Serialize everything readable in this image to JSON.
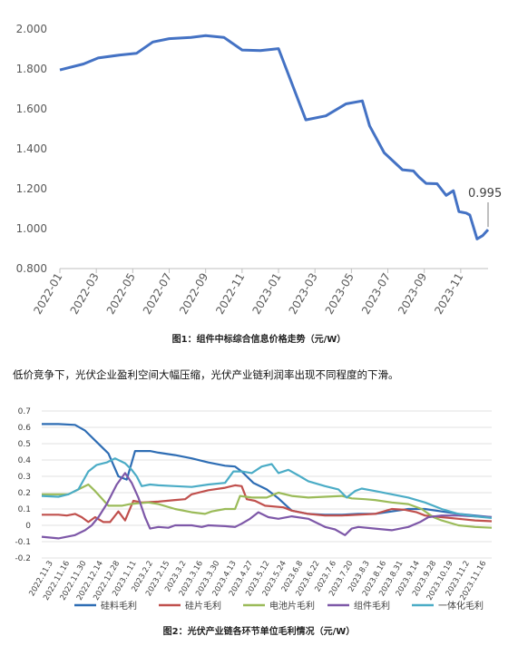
{
  "figure1": {
    "caption": "图1：组件中标综合信息价格走势（元/W）",
    "chart_data": {
      "type": "line",
      "ylim": [
        0.8,
        2.0
      ],
      "yticks": [
        "0.800",
        "1.000",
        "1.200",
        "1.400",
        "1.600",
        "1.800",
        "2.000"
      ],
      "xticks": [
        "2022-01",
        "2022-03",
        "2022-05",
        "2022-07",
        "2022-09",
        "2022-11",
        "2023-01",
        "2023-03",
        "2023-05",
        "2023-07",
        "2023-09",
        "2023-11"
      ],
      "annotation": "0.995",
      "series": [
        {
          "color": "#4472C4",
          "points": [
            [
              0,
              1.795
            ],
            [
              1.3,
              1.825
            ],
            [
              2.1,
              1.855
            ],
            [
              3.3,
              1.87
            ],
            [
              4.2,
              1.878
            ],
            [
              5.1,
              1.935
            ],
            [
              6.0,
              1.952
            ],
            [
              7.2,
              1.958
            ],
            [
              8.0,
              1.967
            ],
            [
              9.0,
              1.958
            ],
            [
              10.0,
              1.895
            ],
            [
              11.0,
              1.892
            ],
            [
              12.0,
              1.902
            ],
            [
              13.5,
              1.545
            ],
            [
              14.6,
              1.565
            ],
            [
              15.7,
              1.625
            ],
            [
              16.6,
              1.64
            ],
            [
              17.0,
              1.515
            ],
            [
              17.8,
              1.38
            ],
            [
              18.8,
              1.295
            ],
            [
              19.4,
              1.289
            ],
            [
              19.7,
              1.259
            ],
            [
              20.1,
              1.227
            ],
            [
              20.7,
              1.225
            ],
            [
              21.2,
              1.167
            ],
            [
              21.6,
              1.19
            ],
            [
              21.9,
              1.085
            ],
            [
              22.3,
              1.078
            ],
            [
              22.5,
              1.068
            ],
            [
              22.9,
              0.948
            ],
            [
              23.2,
              0.965
            ],
            [
              23.5,
              0.995
            ]
          ]
        }
      ]
    }
  },
  "paragraph": "低价竞争下，光伏企业盈利空间大幅压缩，光伏产业链利润率出现不同程度的下滑。",
  "figure2": {
    "caption": "图2：光伏产业链各环节单位毛利情况（元/W）",
    "chart_data": {
      "type": "line",
      "ylim": [
        -0.2,
        0.7
      ],
      "yticks": [
        "-0.2",
        "-0.1",
        "0",
        "0.1",
        "0.2",
        "0.3",
        "0.4",
        "0.5",
        "0.6",
        "0.7"
      ],
      "xticks": [
        "2022.11.3",
        "2022.11.16",
        "2022.11.30",
        "2022.12.14",
        "2022.12.28",
        "2023.1.11",
        "2023.2.2",
        "2023.2.15",
        "2023.3.2",
        "2023.3.16",
        "2023.3.30",
        "2023.4.13",
        "2023.4.27",
        "2023.5.12",
        "2023.5.24",
        "2023.6.8",
        "2023.6.22",
        "2023.7.6",
        "2023.7.20",
        "2023.8.3",
        "2023.8.16",
        "2023.8.31",
        "2023.9.14",
        "2023.9.28",
        "2023.10.19",
        "2023.11.2",
        "2023.11.16"
      ],
      "series": [
        {
          "name": "硅料毛利",
          "color": "#2E6DB4",
          "points": [
            [
              0,
              0.62
            ],
            [
              1,
              0.62
            ],
            [
              2,
              0.615
            ],
            [
              2.6,
              0.58
            ],
            [
              3.5,
              0.49
            ],
            [
              4.0,
              0.44
            ],
            [
              4.3,
              0.37
            ],
            [
              4.6,
              0.3
            ],
            [
              5.1,
              0.28
            ],
            [
              5.3,
              0.35
            ],
            [
              5.6,
              0.455
            ],
            [
              6.5,
              0.455
            ],
            [
              7,
              0.445
            ],
            [
              8,
              0.43
            ],
            [
              9,
              0.41
            ],
            [
              10,
              0.385
            ],
            [
              11,
              0.365
            ],
            [
              11.6,
              0.36
            ],
            [
              12,
              0.33
            ],
            [
              12.7,
              0.26
            ],
            [
              13.5,
              0.22
            ],
            [
              14.2,
              0.165
            ],
            [
              15,
              0.09
            ],
            [
              16,
              0.07
            ],
            [
              17,
              0.065
            ],
            [
              18,
              0.065
            ],
            [
              19,
              0.07
            ],
            [
              20,
              0.07
            ],
            [
              21,
              0.085
            ],
            [
              22,
              0.1
            ],
            [
              23,
              0.1
            ],
            [
              24,
              0.085
            ],
            [
              25,
              0.07
            ],
            [
              26,
              0.06
            ],
            [
              27,
              0.05
            ]
          ]
        },
        {
          "name": "硅片毛利",
          "color": "#C0504D",
          "points": [
            [
              0,
              0.065
            ],
            [
              1,
              0.065
            ],
            [
              1.5,
              0.06
            ],
            [
              2,
              0.07
            ],
            [
              2.4,
              0.05
            ],
            [
              2.8,
              0.02
            ],
            [
              3.2,
              0.05
            ],
            [
              3.7,
              0.02
            ],
            [
              4.1,
              0.02
            ],
            [
              4.6,
              0.085
            ],
            [
              5.0,
              0.03
            ],
            [
              5.5,
              0.15
            ],
            [
              6,
              0.14
            ],
            [
              7,
              0.145
            ],
            [
              8,
              0.155
            ],
            [
              8.6,
              0.16
            ],
            [
              9,
              0.19
            ],
            [
              10,
              0.215
            ],
            [
              11,
              0.23
            ],
            [
              11.6,
              0.245
            ],
            [
              12.0,
              0.24
            ],
            [
              12.3,
              0.16
            ],
            [
              12.8,
              0.15
            ],
            [
              13.4,
              0.12
            ],
            [
              14.5,
              0.11
            ],
            [
              15,
              0.09
            ],
            [
              16,
              0.07
            ],
            [
              17,
              0.06
            ],
            [
              18,
              0.06
            ],
            [
              19,
              0.065
            ],
            [
              20,
              0.07
            ],
            [
              21,
              0.1
            ],
            [
              21.8,
              0.095
            ],
            [
              22.5,
              0.08
            ],
            [
              23,
              0.06
            ],
            [
              24,
              0.05
            ],
            [
              25,
              0.04
            ],
            [
              26,
              0.03
            ],
            [
              27,
              0.025
            ]
          ]
        },
        {
          "name": "电池片毛利",
          "color": "#9BBB59",
          "points": [
            [
              0,
              0.19
            ],
            [
              1,
              0.19
            ],
            [
              1.6,
              0.19
            ],
            [
              2.2,
              0.22
            ],
            [
              2.8,
              0.25
            ],
            [
              3.2,
              0.21
            ],
            [
              4.0,
              0.12
            ],
            [
              4.8,
              0.12
            ],
            [
              5.3,
              0.13
            ],
            [
              5.8,
              0.135
            ],
            [
              6.4,
              0.14
            ],
            [
              7,
              0.13
            ],
            [
              8,
              0.1
            ],
            [
              9,
              0.08
            ],
            [
              9.8,
              0.07
            ],
            [
              10.2,
              0.085
            ],
            [
              11,
              0.1
            ],
            [
              11.6,
              0.1
            ],
            [
              11.9,
              0.18
            ],
            [
              12.6,
              0.17
            ],
            [
              13.5,
              0.17
            ],
            [
              14.2,
              0.2
            ],
            [
              15,
              0.18
            ],
            [
              16,
              0.17
            ],
            [
              17,
              0.175
            ],
            [
              18,
              0.18
            ],
            [
              18.6,
              0.165
            ],
            [
              19.4,
              0.16
            ],
            [
              20,
              0.155
            ],
            [
              21,
              0.14
            ],
            [
              22,
              0.13
            ],
            [
              22.8,
              0.1
            ],
            [
              23.5,
              0.05
            ],
            [
              24,
              0.03
            ],
            [
              25,
              0.0
            ],
            [
              26,
              -0.01
            ],
            [
              27,
              -0.015
            ]
          ]
        },
        {
          "name": "组件毛利",
          "color": "#7E58A8",
          "points": [
            [
              0,
              -0.07
            ],
            [
              1,
              -0.08
            ],
            [
              2,
              -0.06
            ],
            [
              2.6,
              -0.03
            ],
            [
              3.0,
              0.0
            ],
            [
              3.4,
              0.05
            ],
            [
              3.9,
              0.13
            ],
            [
              4.5,
              0.25
            ],
            [
              5.0,
              0.32
            ],
            [
              5.4,
              0.26
            ],
            [
              5.8,
              0.17
            ],
            [
              6.2,
              0.05
            ],
            [
              6.5,
              -0.02
            ],
            [
              7,
              -0.01
            ],
            [
              7.6,
              -0.015
            ],
            [
              8,
              0.0
            ],
            [
              9,
              0.0
            ],
            [
              9.6,
              -0.01
            ],
            [
              10,
              0.0
            ],
            [
              11,
              -0.005
            ],
            [
              11.6,
              -0.01
            ],
            [
              12,
              0.01
            ],
            [
              12.5,
              0.04
            ],
            [
              13.0,
              0.08
            ],
            [
              13.6,
              0.05
            ],
            [
              14.2,
              0.04
            ],
            [
              15,
              0.055
            ],
            [
              16,
              0.04
            ],
            [
              17,
              -0.01
            ],
            [
              17.6,
              -0.025
            ],
            [
              18.2,
              -0.06
            ],
            [
              18.6,
              -0.02
            ],
            [
              19,
              -0.01
            ],
            [
              20,
              -0.02
            ],
            [
              21,
              -0.03
            ],
            [
              22,
              -0.01
            ],
            [
              22.7,
              0.02
            ],
            [
              23.2,
              0.05
            ],
            [
              24,
              0.06
            ],
            [
              25,
              0.06
            ],
            [
              26,
              0.055
            ],
            [
              27,
              0.05
            ]
          ]
        },
        {
          "name": "一体化毛利",
          "color": "#4BACC6",
          "points": [
            [
              0,
              0.18
            ],
            [
              1,
              0.175
            ],
            [
              1.6,
              0.19
            ],
            [
              2.2,
              0.22
            ],
            [
              2.8,
              0.33
            ],
            [
              3.3,
              0.37
            ],
            [
              3.9,
              0.385
            ],
            [
              4.4,
              0.41
            ],
            [
              5.0,
              0.38
            ],
            [
              5.4,
              0.34
            ],
            [
              5.7,
              0.3
            ],
            [
              6.0,
              0.24
            ],
            [
              6.5,
              0.25
            ],
            [
              7,
              0.245
            ],
            [
              8,
              0.24
            ],
            [
              9,
              0.235
            ],
            [
              10,
              0.25
            ],
            [
              11,
              0.26
            ],
            [
              11.5,
              0.33
            ],
            [
              12,
              0.33
            ],
            [
              12.6,
              0.32
            ],
            [
              13.2,
              0.36
            ],
            [
              13.8,
              0.375
            ],
            [
              14.2,
              0.32
            ],
            [
              14.8,
              0.34
            ],
            [
              15.5,
              0.3
            ],
            [
              16,
              0.27
            ],
            [
              17,
              0.24
            ],
            [
              17.8,
              0.22
            ],
            [
              18.3,
              0.17
            ],
            [
              18.8,
              0.21
            ],
            [
              19.2,
              0.225
            ],
            [
              20,
              0.21
            ],
            [
              21,
              0.19
            ],
            [
              22,
              0.17
            ],
            [
              23,
              0.14
            ],
            [
              24,
              0.1
            ],
            [
              25,
              0.07
            ],
            [
              26,
              0.055
            ],
            [
              27,
              0.045
            ]
          ]
        }
      ]
    }
  }
}
